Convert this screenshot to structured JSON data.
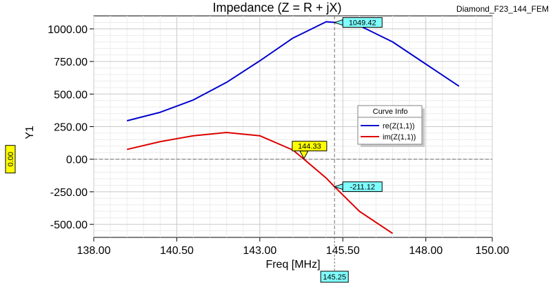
{
  "header": {
    "title": "Impedance (Z = R + jX)",
    "design_name": "Diamond_F23_144_FEM"
  },
  "chart_data": {
    "type": "line",
    "title": "Impedance (Z = R + jX)",
    "xlabel": "Freq [MHz]",
    "ylabel": "Y1",
    "xlim": [
      138.0,
      150.0
    ],
    "ylim": [
      -600,
      1100
    ],
    "xticks": [
      "138.00",
      "140.50",
      "143.00",
      "145.50",
      "148.00",
      "150.00"
    ],
    "xtick_values": [
      138.0,
      140.5,
      143.0,
      145.5,
      148.0,
      150.0
    ],
    "yticks": [
      "1000.00",
      "750.00",
      "500.00",
      "250.00",
      "0.00",
      "-250.00",
      "-500.00"
    ],
    "ytick_values": [
      1000,
      750,
      500,
      250,
      0,
      -250,
      -500
    ],
    "grid": true,
    "legend": {
      "title": "Curve Info",
      "placement": "right",
      "entries": [
        "re(Z(1,1))",
        "im(Z(1,1))"
      ]
    },
    "series": [
      {
        "name": "re(Z(1,1))",
        "color": "#0000cc",
        "x": [
          139.0,
          140.0,
          141.0,
          142.0,
          143.0,
          144.0,
          145.0,
          145.25,
          146.0,
          147.0,
          148.0,
          149.0
        ],
        "y": [
          295,
          360,
          455,
          590,
          755,
          930,
          1055,
          1049.42,
          1025,
          900,
          730,
          560
        ]
      },
      {
        "name": "im(Z(1,1))",
        "color": "#dd0000",
        "x": [
          139.0,
          140.0,
          141.0,
          142.0,
          143.0,
          144.0,
          144.33,
          145.0,
          145.25,
          146.0,
          147.0
        ],
        "y": [
          75,
          135,
          180,
          205,
          180,
          70,
          0,
          -145,
          -211.12,
          -400,
          -570
        ]
      }
    ],
    "crosshair": {
      "x": 145.25,
      "y": 0.0,
      "x_label": "145.25",
      "y_label": "0.00"
    },
    "markers": [
      {
        "label": "1049.42",
        "series": "re(Z(1,1))",
        "x": 145.25,
        "y": 1049.42,
        "color": "#80ffff"
      },
      {
        "label": "144.33",
        "series": "im(Z(1,1))",
        "x": 144.33,
        "y": 0.0,
        "color": "#ffff00"
      },
      {
        "label": "-211.12",
        "series": "im(Z(1,1))",
        "x": 145.25,
        "y": -211.12,
        "color": "#80ffff"
      }
    ]
  }
}
